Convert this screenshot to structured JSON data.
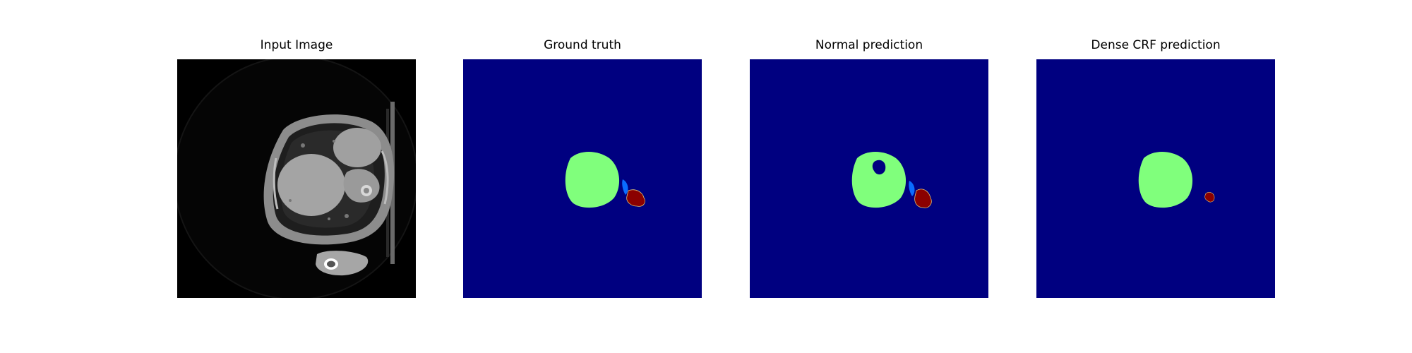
{
  "panels": [
    {
      "title": "Input Image",
      "kind": "ct-slice"
    },
    {
      "title": "Ground truth",
      "kind": "segmentation-mask"
    },
    {
      "title": "Normal prediction",
      "kind": "segmentation-mask"
    },
    {
      "title": "Dense CRF prediction",
      "kind": "segmentation-mask"
    }
  ],
  "colors": {
    "background_class": "#000080",
    "green_class": "#80ff7c",
    "blue_class": "#0a6cff",
    "red_class": "#8b0000",
    "ct_background": "#000000"
  }
}
